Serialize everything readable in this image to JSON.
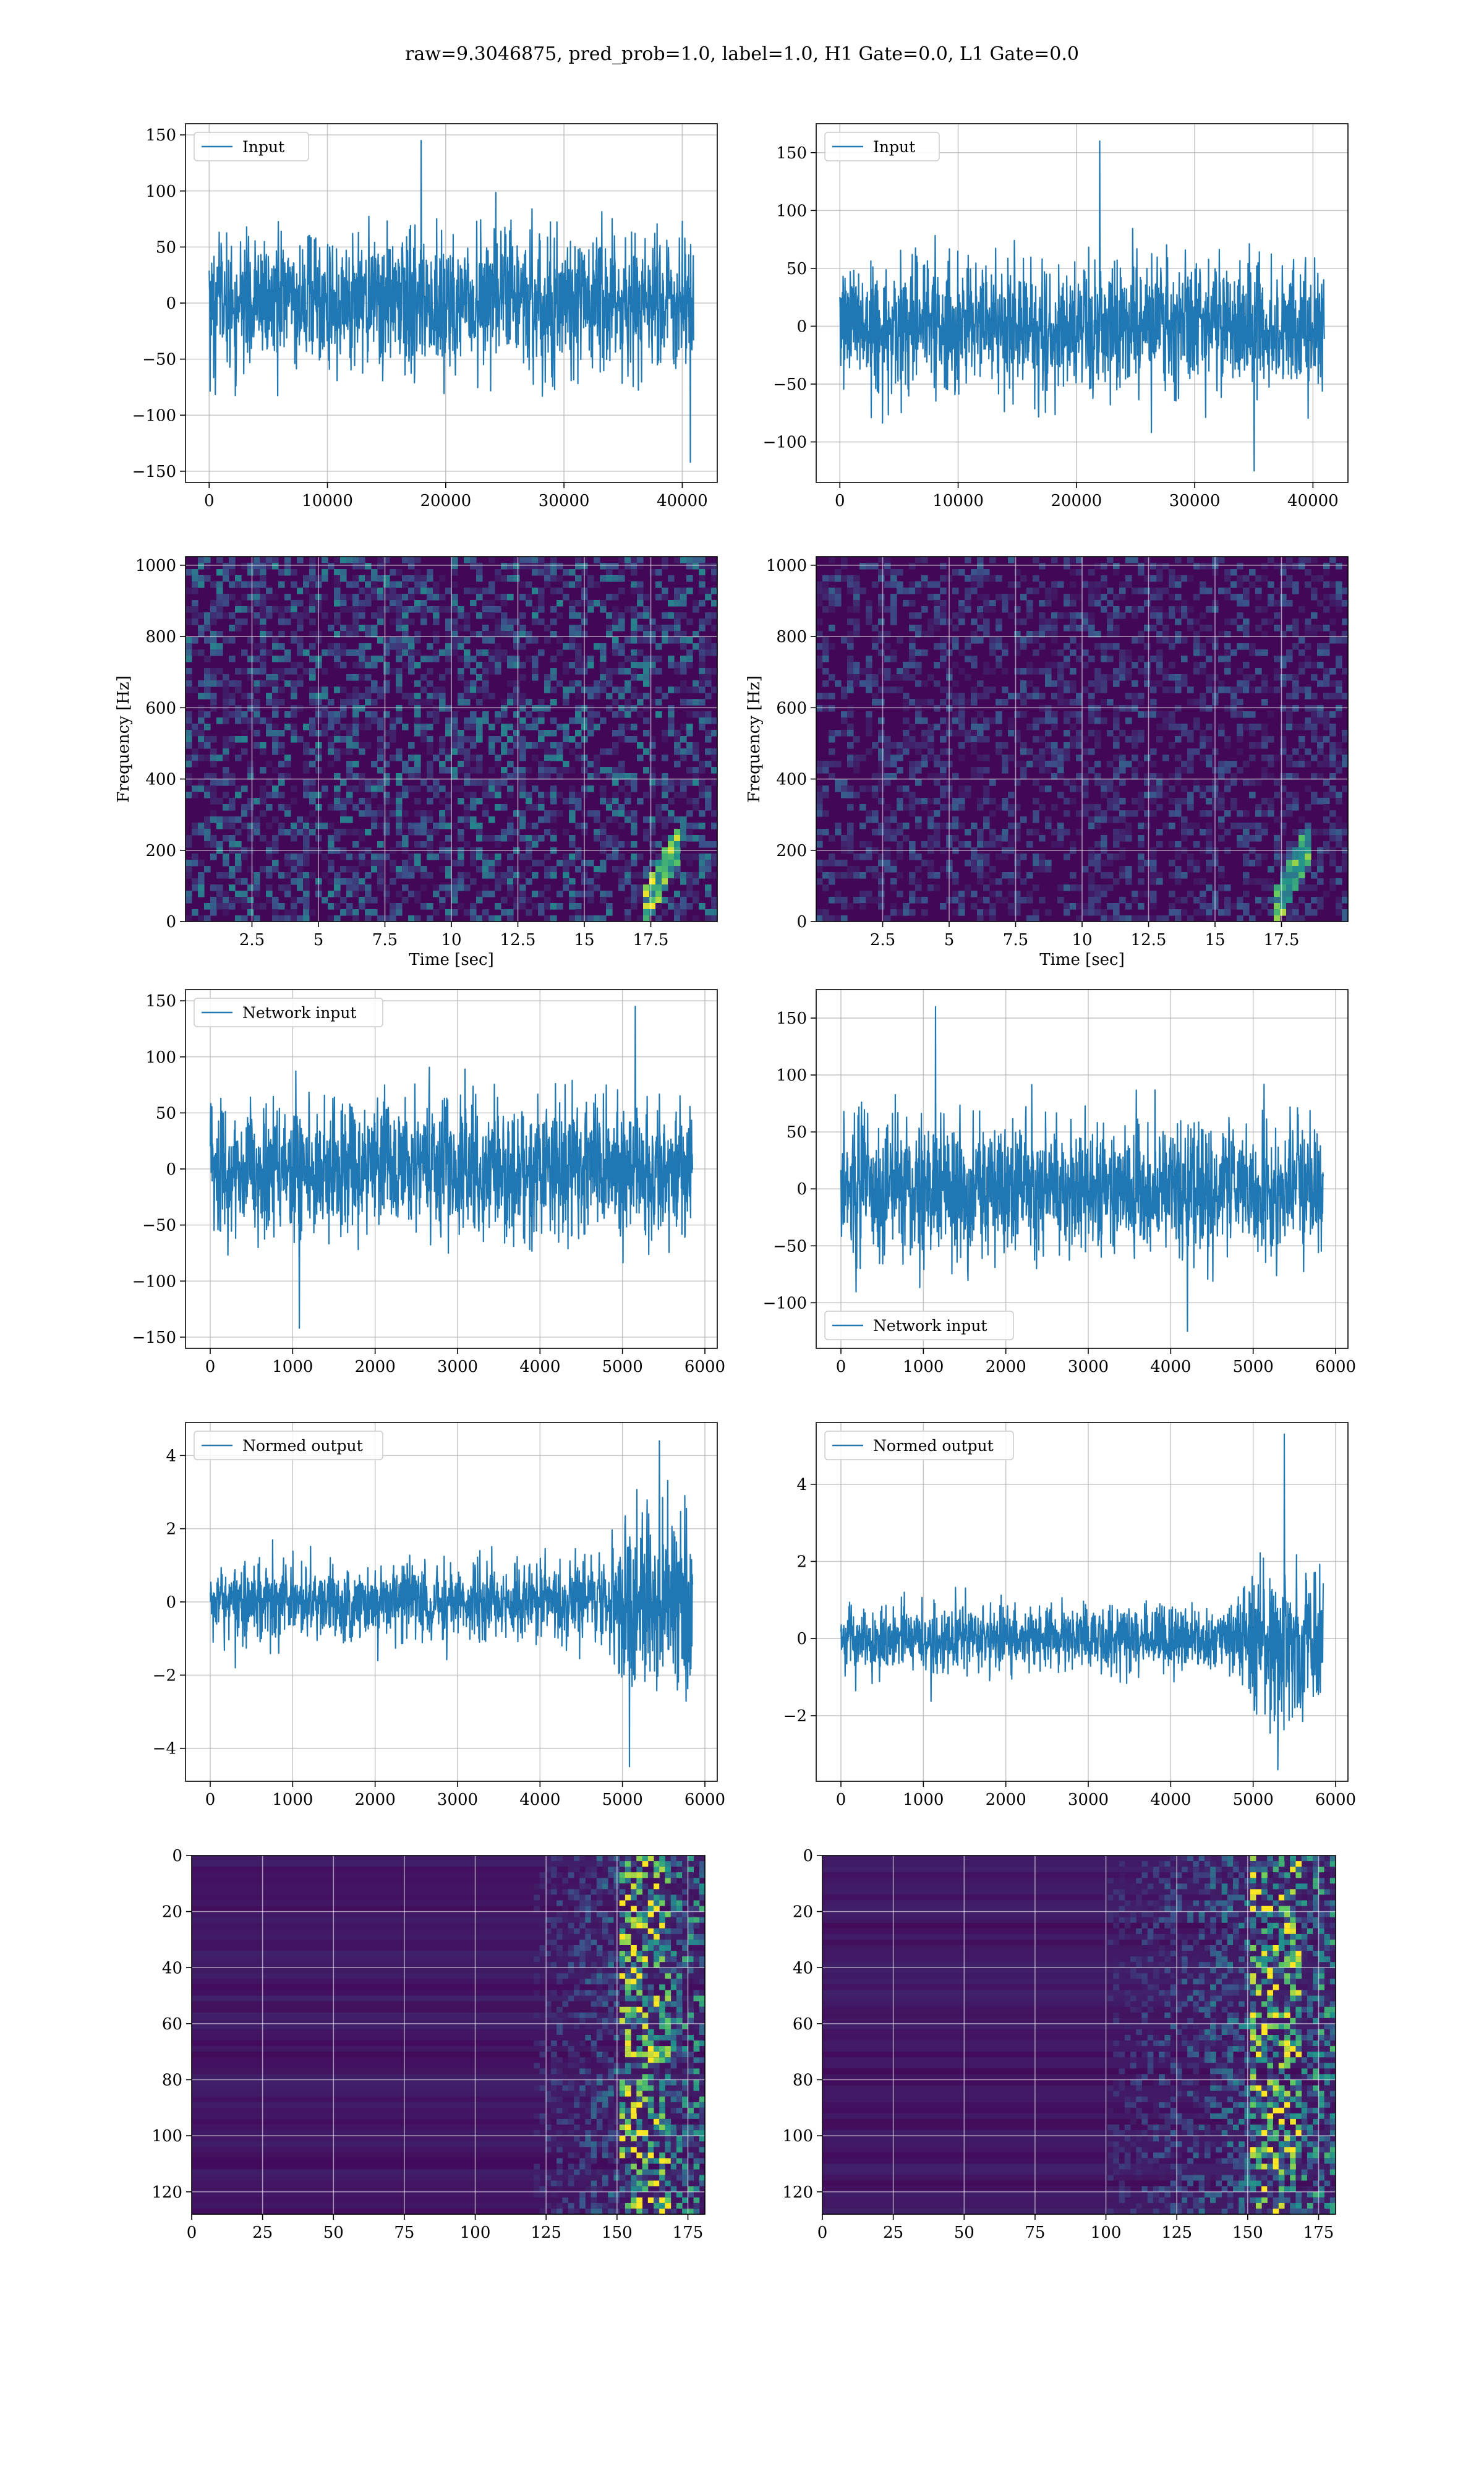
{
  "figure": {
    "suptitle": "raw=9.3046875, pred_prob=1.0, label=1.0, H1 Gate=0.0, L1 Gate=0.0"
  },
  "chart_data": [
    {
      "id": "h1-input",
      "type": "line",
      "legend": "Input",
      "legend_loc": "upper-left",
      "xlim": [
        -2000,
        42960
      ],
      "ylim": [
        -160,
        160
      ],
      "xticks": [
        0,
        10000,
        20000,
        30000,
        40000
      ],
      "yticks": [
        -150,
        -100,
        -50,
        0,
        50,
        100,
        150
      ],
      "n_samples": 40960,
      "sigma": 30,
      "peak_min": -142,
      "peak_max": 145,
      "grid": true,
      "xlabel": "",
      "ylabel": ""
    },
    {
      "id": "l1-input",
      "type": "line",
      "legend": "Input",
      "legend_loc": "upper-left",
      "xlim": [
        -2000,
        42960
      ],
      "ylim": [
        -135,
        175
      ],
      "xticks": [
        0,
        10000,
        20000,
        30000,
        40000
      ],
      "yticks": [
        -100,
        -50,
        0,
        50,
        100,
        150
      ],
      "n_samples": 40960,
      "sigma": 28,
      "peak_min": -125,
      "peak_max": 160,
      "grid": true,
      "xlabel": "",
      "ylabel": ""
    },
    {
      "id": "h1-spectrogram",
      "type": "heatmap",
      "xlim": [
        0,
        20
      ],
      "ylim": [
        0,
        1024
      ],
      "xticks": [
        2.5,
        5.0,
        7.5,
        10.0,
        12.5,
        15.0,
        17.5
      ],
      "yticks": [
        0,
        200,
        400,
        600,
        800,
        1000
      ],
      "xlabel": "Time [sec]",
      "ylabel": "Frequency [Hz]",
      "grid": true,
      "colormap": "viridis",
      "chirp_time": 18.2,
      "intensity": 0.45
    },
    {
      "id": "l1-spectrogram",
      "type": "heatmap",
      "xlim": [
        0,
        20
      ],
      "ylim": [
        0,
        1024
      ],
      "xticks": [
        2.5,
        5.0,
        7.5,
        10.0,
        12.5,
        15.0,
        17.5
      ],
      "yticks": [
        0,
        200,
        400,
        600,
        800,
        1000
      ],
      "xlabel": "Time [sec]",
      "ylabel": "Frequency [Hz]",
      "grid": true,
      "colormap": "viridis",
      "chirp_time": 18.2,
      "intensity": 0.3
    },
    {
      "id": "h1-network-input",
      "type": "line",
      "legend": "Network input",
      "legend_loc": "upper-left",
      "xlim": [
        -300,
        6150
      ],
      "ylim": [
        -160,
        160
      ],
      "xticks": [
        0,
        1000,
        2000,
        3000,
        4000,
        5000,
        6000
      ],
      "yticks": [
        -150,
        -100,
        -50,
        0,
        50,
        100,
        150
      ],
      "n_samples": 5850,
      "sigma": 30,
      "peak_min": -142,
      "peak_max": 145,
      "grid": true,
      "xlabel": "",
      "ylabel": ""
    },
    {
      "id": "l1-network-input",
      "type": "line",
      "legend": "Network input",
      "legend_loc": "lower-left",
      "xlim": [
        -300,
        6150
      ],
      "ylim": [
        -140,
        175
      ],
      "xticks": [
        0,
        1000,
        2000,
        3000,
        4000,
        5000,
        6000
      ],
      "yticks": [
        -100,
        -50,
        0,
        50,
        100,
        150
      ],
      "n_samples": 5850,
      "sigma": 28,
      "peak_min": -125,
      "peak_max": 160,
      "grid": true,
      "xlabel": "",
      "ylabel": ""
    },
    {
      "id": "h1-normed-output",
      "type": "line",
      "legend": "Normed output",
      "legend_loc": "upper-left",
      "xlim": [
        -300,
        6150
      ],
      "ylim": [
        -4.9,
        4.9
      ],
      "xticks": [
        0,
        1000,
        2000,
        3000,
        4000,
        5000,
        6000
      ],
      "yticks": [
        -4,
        -2,
        0,
        2,
        4
      ],
      "n_samples": 5850,
      "sigma": 0.5,
      "burst_start": 4700,
      "burst_scale": 2.6,
      "peak_min": -4.5,
      "peak_max": 4.4,
      "grid": true,
      "xlabel": "",
      "ylabel": ""
    },
    {
      "id": "l1-normed-output",
      "type": "line",
      "legend": "Normed output",
      "legend_loc": "upper-left",
      "xlim": [
        -300,
        6150
      ],
      "ylim": [
        -3.7,
        5.6
      ],
      "xticks": [
        0,
        1000,
        2000,
        3000,
        4000,
        5000,
        6000
      ],
      "yticks": [
        -2,
        0,
        2,
        4
      ],
      "n_samples": 5850,
      "sigma": 0.42,
      "burst_start": 4700,
      "burst_scale": 2.4,
      "peak_min": -3.4,
      "peak_max": 5.3,
      "grid": true,
      "xlabel": "",
      "ylabel": ""
    },
    {
      "id": "h1-feature-map",
      "type": "heatmap",
      "xlim": [
        0,
        181
      ],
      "ylim": [
        128,
        0
      ],
      "xticks": [
        0,
        25,
        50,
        75,
        100,
        125,
        150,
        175
      ],
      "yticks": [
        0,
        20,
        40,
        60,
        80,
        100,
        120
      ],
      "grid": true,
      "colormap": "viridis",
      "active_from": 120
    },
    {
      "id": "l1-feature-map",
      "type": "heatmap",
      "xlim": [
        0,
        181
      ],
      "ylim": [
        128,
        0
      ],
      "xticks": [
        0,
        25,
        50,
        75,
        100,
        125,
        150,
        175
      ],
      "yticks": [
        0,
        20,
        40,
        60,
        80,
        100,
        120
      ],
      "grid": true,
      "colormap": "viridis",
      "active_from": 100
    }
  ]
}
